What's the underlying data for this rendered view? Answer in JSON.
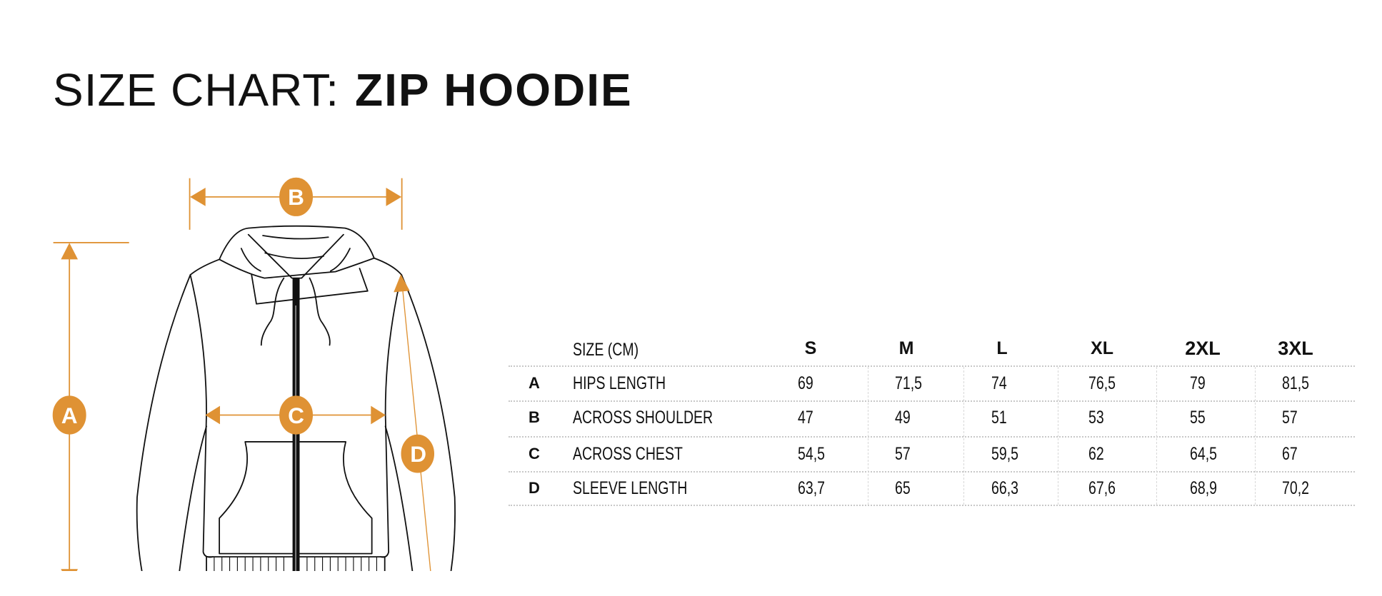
{
  "title": {
    "prefix": "SIZE CHART:",
    "product": "ZIP HOODIE"
  },
  "colors": {
    "accent": "#DF9234",
    "line": "#111111"
  },
  "diagram": {
    "markers": [
      "A",
      "B",
      "C",
      "D"
    ]
  },
  "table": {
    "header_label": "SIZE  (CM)",
    "sizes": [
      "S",
      "M",
      "L",
      "XL",
      "2XL",
      "3XL"
    ],
    "rows": [
      {
        "key": "A",
        "label": "HIPS LENGTH",
        "values": [
          "69",
          "71,5",
          "74",
          "76,5",
          "79",
          "81,5"
        ]
      },
      {
        "key": "B",
        "label": "ACROSS SHOULDER",
        "values": [
          "47",
          "49",
          "51",
          "53",
          "55",
          "57"
        ]
      },
      {
        "key": "C",
        "label": "ACROSS CHEST",
        "values": [
          "54,5",
          "57",
          "59,5",
          "62",
          "64,5",
          "67"
        ]
      },
      {
        "key": "D",
        "label": "SLEEVE LENGTH",
        "values": [
          "63,7",
          "65",
          "66,3",
          "67,6",
          "68,9",
          "70,2"
        ]
      }
    ]
  }
}
